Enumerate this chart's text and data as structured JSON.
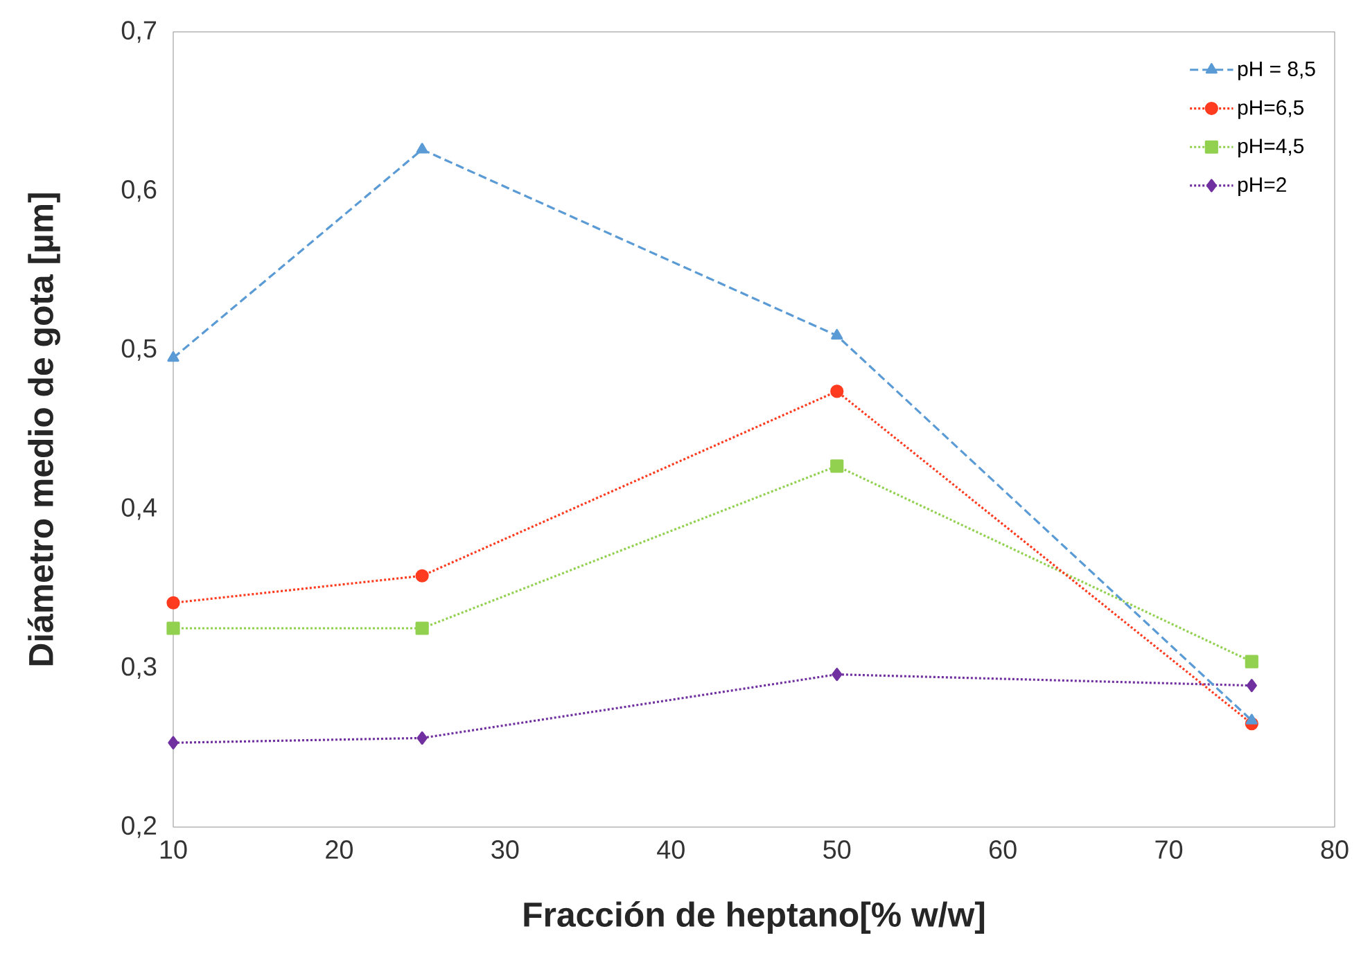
{
  "chart_data": {
    "type": "line",
    "xlabel": "Fracción de heptano[% w/w]",
    "ylabel": "Diámetro medio de gota [µm]",
    "x": [
      10,
      25,
      50,
      75
    ],
    "series": [
      {
        "name": "pH = 8,5",
        "color": "#5b9bd5",
        "marker": "triangle",
        "line_style": "dashed",
        "values": [
          0.495,
          0.626,
          0.509,
          0.267
        ]
      },
      {
        "name": "pH=6,5",
        "color": "#ff3b1f",
        "marker": "circle",
        "line_style": "dotted",
        "values": [
          0.341,
          0.358,
          0.474,
          0.265
        ]
      },
      {
        "name": "pH=4,5",
        "color": "#92d050",
        "marker": "square",
        "line_style": "dotted",
        "values": [
          0.325,
          0.325,
          0.427,
          0.304
        ]
      },
      {
        "name": "pH=2",
        "color": "#7030a0",
        "marker": "diamond",
        "line_style": "dotted",
        "values": [
          0.253,
          0.256,
          0.296,
          0.289
        ]
      }
    ],
    "xlim": [
      10,
      80
    ],
    "xticks": [
      10,
      20,
      30,
      40,
      50,
      60,
      70,
      80
    ],
    "ylim": [
      0.2,
      0.7
    ],
    "yticks": [
      {
        "value": 0.2,
        "label": "0,2"
      },
      {
        "value": 0.3,
        "label": "0,3"
      },
      {
        "value": 0.4,
        "label": "0,4"
      },
      {
        "value": 0.5,
        "label": "0,5"
      },
      {
        "value": 0.6,
        "label": "0,6"
      },
      {
        "value": 0.7,
        "label": "0,7"
      }
    ],
    "grid": false,
    "legend": "top right"
  }
}
